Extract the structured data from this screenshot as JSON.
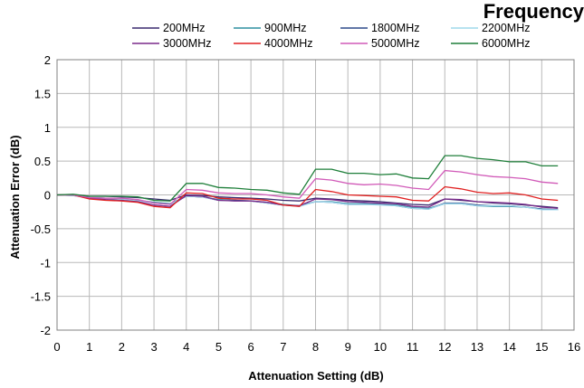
{
  "chart_data": {
    "type": "line",
    "title": "Frequency",
    "xlabel": "Attenuation Setting (dB)",
    "ylabel": "Attenuation Error (dB)",
    "xlim": [
      0,
      16
    ],
    "ylim": [
      -2,
      2
    ],
    "x_ticks": [
      0,
      1,
      2,
      3,
      4,
      5,
      6,
      7,
      8,
      9,
      10,
      11,
      12,
      13,
      14,
      15,
      16
    ],
    "y_ticks": [
      2,
      1.5,
      1,
      0.5,
      0,
      -0.5,
      -1,
      -1.5,
      -2
    ],
    "grid": true,
    "legend_position": "top",
    "x": [
      0,
      0.5,
      1,
      1.5,
      2,
      2.5,
      3,
      3.5,
      4,
      4.5,
      5,
      5.5,
      6,
      6.5,
      7,
      7.5,
      8,
      8.5,
      9,
      9.5,
      10,
      10.5,
      11,
      11.5,
      12,
      12.5,
      13,
      13.5,
      14,
      14.5,
      15,
      15.5
    ],
    "series": [
      {
        "name": "200MHz",
        "color": "#3a2a6e",
        "values": [
          0,
          0,
          -0.02,
          -0.02,
          -0.03,
          -0.04,
          -0.06,
          -0.08,
          0.0,
          -0.01,
          -0.03,
          -0.04,
          -0.05,
          -0.06,
          -0.08,
          -0.09,
          -0.05,
          -0.06,
          -0.08,
          -0.09,
          -0.1,
          -0.12,
          -0.14,
          -0.15,
          -0.06,
          -0.08,
          -0.1,
          -0.12,
          -0.13,
          -0.15,
          -0.17,
          -0.19
        ]
      },
      {
        "name": "900MHz",
        "color": "#2f8fa0",
        "values": [
          0,
          0,
          -0.04,
          -0.05,
          -0.06,
          -0.08,
          -0.11,
          -0.13,
          -0.02,
          -0.03,
          -0.07,
          -0.08,
          -0.09,
          -0.11,
          -0.14,
          -0.16,
          -0.1,
          -0.1,
          -0.13,
          -0.13,
          -0.14,
          -0.15,
          -0.19,
          -0.2,
          -0.13,
          -0.13,
          -0.16,
          -0.17,
          -0.17,
          -0.18,
          -0.21,
          -0.22
        ]
      },
      {
        "name": "1800MHz",
        "color": "#2d4a8a",
        "values": [
          0,
          -0.01,
          -0.04,
          -0.05,
          -0.06,
          -0.08,
          -0.12,
          -0.14,
          -0.02,
          -0.03,
          -0.08,
          -0.08,
          -0.09,
          -0.12,
          -0.15,
          -0.16,
          -0.1,
          -0.11,
          -0.14,
          -0.14,
          -0.14,
          -0.16,
          -0.2,
          -0.21,
          -0.12,
          -0.12,
          -0.15,
          -0.16,
          -0.16,
          -0.18,
          -0.21,
          -0.22
        ]
      },
      {
        "name": "2200MHz",
        "color": "#9fd8ec",
        "values": [
          0,
          -0.01,
          -0.04,
          -0.05,
          -0.06,
          -0.09,
          -0.12,
          -0.14,
          -0.02,
          -0.03,
          -0.08,
          -0.09,
          -0.09,
          -0.12,
          -0.15,
          -0.17,
          -0.1,
          -0.11,
          -0.14,
          -0.14,
          -0.15,
          -0.16,
          -0.2,
          -0.21,
          -0.13,
          -0.13,
          -0.16,
          -0.16,
          -0.16,
          -0.18,
          -0.22,
          -0.22
        ]
      },
      {
        "name": "3000MHz",
        "color": "#7a2a8a",
        "values": [
          0,
          0,
          -0.05,
          -0.07,
          -0.08,
          -0.1,
          -0.15,
          -0.17,
          -0.01,
          -0.02,
          -0.08,
          -0.09,
          -0.09,
          -0.11,
          -0.15,
          -0.16,
          -0.06,
          -0.07,
          -0.1,
          -0.11,
          -0.12,
          -0.13,
          -0.17,
          -0.18,
          -0.06,
          -0.07,
          -0.1,
          -0.11,
          -0.12,
          -0.14,
          -0.18,
          -0.2
        ]
      },
      {
        "name": "4000MHz",
        "color": "#e02020",
        "values": [
          0,
          0,
          -0.06,
          -0.08,
          -0.09,
          -0.11,
          -0.17,
          -0.19,
          0.03,
          0.02,
          -0.05,
          -0.06,
          -0.06,
          -0.08,
          -0.15,
          -0.17,
          0.08,
          0.05,
          0.0,
          -0.01,
          -0.02,
          -0.03,
          -0.08,
          -0.09,
          0.12,
          0.09,
          0.04,
          0.02,
          0.03,
          0.0,
          -0.06,
          -0.08
        ]
      },
      {
        "name": "5000MHz",
        "color": "#d15ab8",
        "values": [
          0,
          0,
          -0.04,
          -0.05,
          -0.05,
          -0.07,
          -0.12,
          -0.14,
          0.08,
          0.07,
          0.03,
          0.02,
          0.02,
          0.0,
          -0.03,
          -0.05,
          0.24,
          0.22,
          0.17,
          0.15,
          0.16,
          0.14,
          0.1,
          0.08,
          0.36,
          0.34,
          0.3,
          0.27,
          0.26,
          0.24,
          0.19,
          0.17
        ]
      },
      {
        "name": "6000MHz",
        "color": "#1f7f3a",
        "values": [
          0,
          0.01,
          -0.02,
          -0.02,
          -0.02,
          -0.03,
          -0.08,
          -0.09,
          0.17,
          0.17,
          0.11,
          0.1,
          0.08,
          0.07,
          0.03,
          0.01,
          0.38,
          0.38,
          0.32,
          0.32,
          0.3,
          0.31,
          0.25,
          0.24,
          0.58,
          0.58,
          0.54,
          0.52,
          0.49,
          0.49,
          0.43,
          0.43
        ]
      }
    ]
  }
}
